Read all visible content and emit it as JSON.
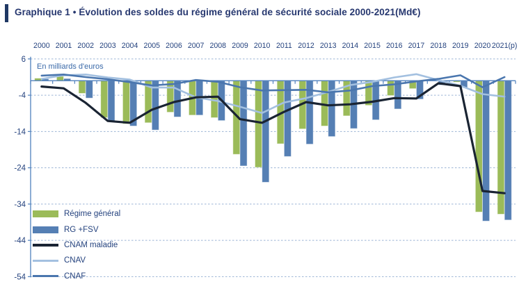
{
  "header": {
    "title": "Graphique 1 • Évolution des soldes du régime général de sécurité sociale 2000-2021(Md€)"
  },
  "chart_data": {
    "type": "bar",
    "subtype": "grouped bars with overlaid lines",
    "unit_note": "En milliards d'euros",
    "categories": [
      "2000",
      "2001",
      "2002",
      "2003",
      "2004",
      "2005",
      "2006",
      "2007",
      "2008",
      "2009",
      "2010",
      "2011",
      "2012",
      "2013",
      "2014",
      "2015",
      "2016",
      "2017",
      "2018",
      "2019",
      "2020",
      "2021(p)"
    ],
    "yticks": [
      6,
      -4,
      -14,
      -24,
      -34,
      -44,
      -54
    ],
    "ylim": [
      -54,
      6
    ],
    "grid": "horizontal dashed light blue",
    "legend_position": "inside bottom-left",
    "x_axis_position": "labels on top, axis crosses at 0 with down ticks",
    "series": [
      {
        "name": "Régime général",
        "type": "bar",
        "color": "#9bbb59",
        "values": [
          0.7,
          1.2,
          -3.5,
          -10.2,
          -11.9,
          -11.6,
          -8.7,
          -9.5,
          -10.2,
          -20.3,
          -23.9,
          -17.4,
          -13.3,
          -12.5,
          -9.7,
          -6.8,
          -4.1,
          -2.2,
          0.5,
          -0.4,
          -36.2,
          -36.8
        ]
      },
      {
        "name": "RG +FSV",
        "type": "bar",
        "color": "#557fb4",
        "values": [
          0.5,
          0.6,
          -4.8,
          -11.1,
          -12.5,
          -13.6,
          -10.0,
          -9.5,
          -11.0,
          -23.5,
          -28.0,
          -20.9,
          -17.5,
          -15.4,
          -13.2,
          -10.8,
          -7.8,
          -5.1,
          -1.2,
          -1.9,
          -38.7,
          -38.4
        ]
      },
      {
        "name": "CNAM maladie",
        "type": "line",
        "color": "#1a2433",
        "values": [
          -1.6,
          -2.1,
          -6.1,
          -11.1,
          -11.6,
          -8.0,
          -5.9,
          -4.6,
          -4.4,
          -10.6,
          -11.6,
          -8.6,
          -5.9,
          -6.8,
          -6.5,
          -5.8,
          -4.8,
          -4.9,
          -0.7,
          -1.5,
          -30.4,
          -31.0
        ]
      },
      {
        "name": "CNAV",
        "type": "line",
        "color": "#a3c0e0",
        "values": [
          0.5,
          1.5,
          1.7,
          0.9,
          0.3,
          -1.9,
          -1.9,
          -4.6,
          -5.6,
          -7.2,
          -8.9,
          -6.0,
          -4.8,
          -3.1,
          -1.2,
          -0.3,
          0.9,
          1.8,
          0.2,
          -1.4,
          -3.7,
          -4.4
        ]
      },
      {
        "name": "CNAF",
        "type": "line",
        "color": "#4a76ae",
        "values": [
          1.4,
          1.7,
          1.0,
          0.4,
          -0.4,
          -1.3,
          -0.9,
          0.2,
          -0.3,
          -1.8,
          -2.7,
          -2.6,
          -2.5,
          -3.2,
          -2.7,
          -1.5,
          -1.0,
          -0.2,
          0.5,
          1.5,
          -1.8,
          1.0
        ]
      }
    ]
  },
  "colors": {
    "title_text": "#26376f",
    "axis_label_text": "#24427e",
    "unit_note_text": "#3a69a8",
    "axis_line": "#4f81bd",
    "grid_line": "#9ab3d5",
    "title_accent": "#1f3864",
    "background": "#ffffff"
  }
}
